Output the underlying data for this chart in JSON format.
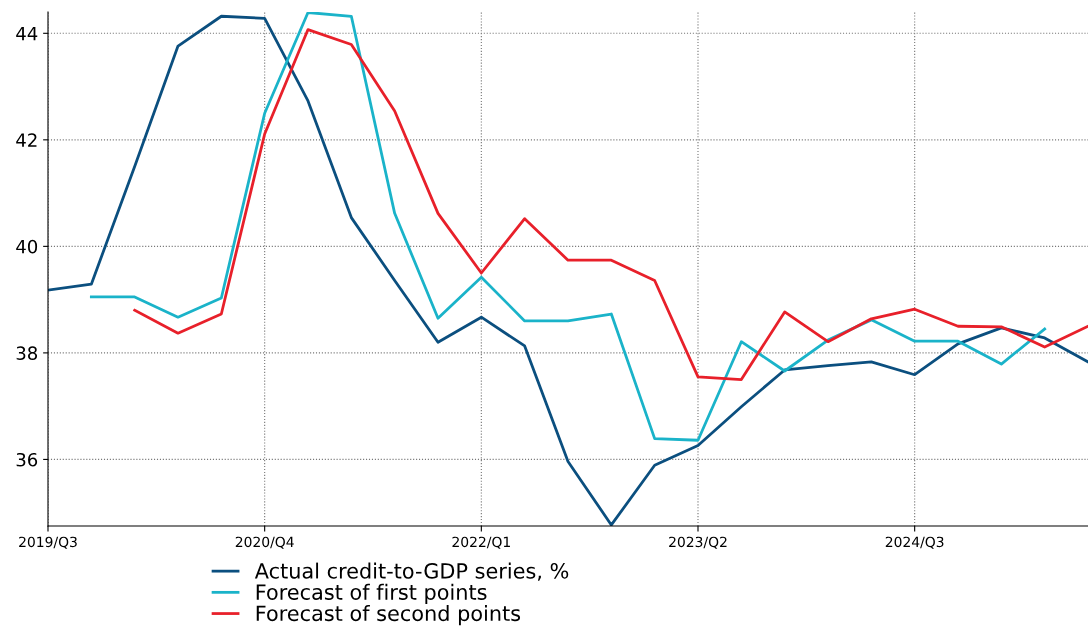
{
  "chart_data": {
    "type": "line",
    "categories": [
      "2019/Q3",
      null,
      null,
      null,
      null,
      "2020/Q4",
      null,
      null,
      null,
      null,
      "2022/Q1",
      null,
      null,
      null,
      null,
      "2023/Q2",
      null,
      null,
      null,
      null,
      "2024/Q3",
      null,
      null,
      null,
      null
    ],
    "series": [
      {
        "name": "Actual credit-to-GDP series, %",
        "color": "#0b4f7f",
        "values": [
          39.18,
          39.29,
          41.5,
          43.76,
          44.32,
          44.28,
          42.73,
          40.54,
          39.36,
          38.2,
          38.67,
          38.13,
          35.96,
          34.77,
          35.89,
          36.26,
          36.99,
          37.68,
          37.76,
          37.83,
          37.59,
          38.17,
          38.47,
          38.28,
          37.83
        ]
      },
      {
        "name": "Forecast of first points",
        "color": "#1ab3c9",
        "values": [
          null,
          39.05,
          39.05,
          38.67,
          39.03,
          42.5,
          44.39,
          44.32,
          40.62,
          38.65,
          39.42,
          38.6,
          38.6,
          38.73,
          36.39,
          36.36,
          38.21,
          37.66,
          38.24,
          38.62,
          38.22,
          38.22,
          37.79,
          38.45,
          null
        ]
      },
      {
        "name": "Forecast of second points",
        "color": "#e8202a",
        "values": [
          null,
          null,
          38.8,
          38.37,
          38.73,
          42.11,
          44.07,
          43.79,
          42.54,
          40.62,
          39.5,
          40.52,
          39.74,
          39.74,
          39.36,
          37.55,
          37.5,
          38.77,
          38.21,
          38.64,
          38.82,
          38.5,
          38.49,
          38.11,
          38.5
        ]
      }
    ],
    "ylim": [
      34.75,
      44.4
    ],
    "yticks": [
      36,
      38,
      40,
      42,
      44
    ],
    "grid": true,
    "legend": "bottom",
    "marker": "none",
    "line_style": "solid"
  }
}
